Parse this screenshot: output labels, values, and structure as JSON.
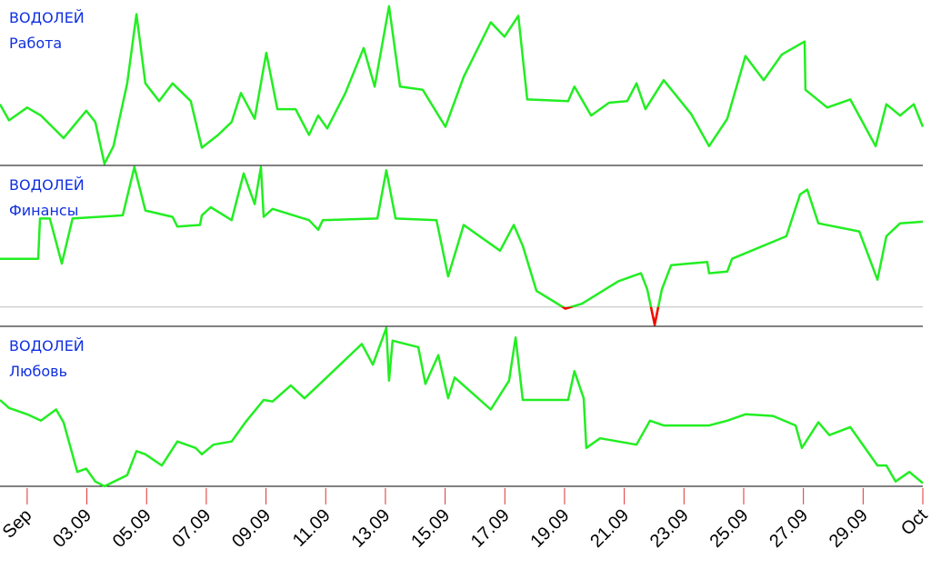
{
  "chart_data": [
    {
      "type": "line",
      "title": "ВОДОЛЕЙ",
      "subtitle": "Работа",
      "xlim": [
        -0.91,
        30
      ],
      "ylim": [
        0,
        100
      ],
      "x": [
        -0.91,
        -0.61,
        0,
        0.46,
        1.22,
        1.98,
        2.28,
        2.59,
        2.89,
        3.35,
        3.66,
        3.96,
        4.42,
        4.87,
        5.48,
        5.85,
        6.4,
        6.85,
        7.16,
        7.62,
        8.01,
        8.38,
        8.99,
        9.44,
        9.75,
        10.05,
        10.66,
        11.27,
        11.64,
        12.12,
        12.49,
        13.25,
        14.01,
        14.62,
        15.53,
        15.99,
        16.45,
        16.75,
        18.12,
        18.33,
        18.89,
        19.49,
        20.1,
        20.41,
        20.71,
        21.32,
        22.24,
        22.84,
        23.45,
        24.06,
        24.67,
        25.28,
        26.04,
        26.07,
        26.8,
        27.57,
        28.42,
        28.78,
        29.24,
        29.7,
        30.0
      ],
      "series": [
        {
          "color": "#22ee22",
          "values": [
            38,
            28,
            36,
            31,
            17,
            34,
            27,
            1,
            12,
            51,
            94,
            51,
            40,
            51,
            40,
            11,
            19,
            27,
            45,
            29,
            70,
            35,
            35,
            19,
            31,
            23,
            45,
            73,
            49,
            99,
            49,
            47,
            24,
            55,
            89,
            80,
            93,
            41,
            40,
            49,
            31,
            39,
            40,
            51,
            35,
            53,
            32,
            12,
            29,
            68,
            53,
            69,
            77,
            47,
            36,
            41,
            12,
            38,
            31,
            38,
            24
          ]
        }
      ]
    },
    {
      "type": "line",
      "title": "ВОДОЛЕЙ",
      "subtitle": "Финансы",
      "xlim": [
        -0.91,
        30
      ],
      "ylim": [
        0,
        100
      ],
      "threshold": 12,
      "threshold_color": "#ff0000",
      "x": [
        -0.91,
        0.37,
        0.43,
        0.76,
        1.16,
        1.52,
        3.2,
        3.59,
        3.96,
        4.87,
        5.03,
        5.79,
        5.85,
        6.15,
        6.85,
        7.25,
        7.62,
        7.83,
        7.92,
        8.22,
        9.44,
        9.75,
        9.9,
        11.73,
        12.03,
        12.34,
        13.71,
        14.1,
        14.62,
        15.84,
        16.3,
        16.6,
        17.06,
        18.03,
        18.58,
        19.8,
        20.56,
        20.77,
        21.02,
        21.26,
        21.57,
        22.78,
        22.84,
        23.45,
        23.61,
        25.43,
        25.89,
        26.13,
        26.5,
        27.87,
        28.48,
        28.78,
        29.24,
        30.0
      ],
      "series": [
        {
          "color": "#22ee22",
          "values": [
            42,
            42,
            67,
            67,
            39,
            67,
            69,
            99,
            72,
            68,
            62,
            63,
            69,
            74,
            66,
            95,
            76,
            99,
            68,
            73,
            66,
            60,
            66,
            67,
            97,
            67,
            66,
            31,
            63,
            47,
            63,
            50,
            22,
            11,
            14,
            28,
            33,
            23,
            1,
            23,
            38,
            40,
            33,
            34,
            42,
            56,
            82,
            85,
            64,
            59,
            29,
            56,
            64,
            65
          ]
        }
      ]
    },
    {
      "type": "line",
      "title": "ВОДОЛЕЙ",
      "subtitle": "Любовь",
      "xlim": [
        -0.91,
        30
      ],
      "ylim": [
        0,
        100
      ],
      "xticks": [
        {
          "value": 0,
          "label": "Sep"
        },
        {
          "value": 2,
          "label": "03.09"
        },
        {
          "value": 4,
          "label": "05.09"
        },
        {
          "value": 6,
          "label": "07.09"
        },
        {
          "value": 8,
          "label": "09.09"
        },
        {
          "value": 10,
          "label": "11.09"
        },
        {
          "value": 12,
          "label": "13.09"
        },
        {
          "value": 14,
          "label": "15.09"
        },
        {
          "value": 16,
          "label": "17.09"
        },
        {
          "value": 18,
          "label": "19.09"
        },
        {
          "value": 20,
          "label": "21.09"
        },
        {
          "value": 22,
          "label": "23.09"
        },
        {
          "value": 24,
          "label": "25.09"
        },
        {
          "value": 26,
          "label": "27.09"
        },
        {
          "value": 28,
          "label": "29.09"
        },
        {
          "value": 30,
          "label": "Oct"
        }
      ],
      "x": [
        -0.91,
        -0.61,
        0,
        0.46,
        0.97,
        1.22,
        1.68,
        1.98,
        2.28,
        2.59,
        3.35,
        3.66,
        3.96,
        4.51,
        5.03,
        5.33,
        5.64,
        5.85,
        6.24,
        6.85,
        7.31,
        7.92,
        8.22,
        8.83,
        9.29,
        9.75,
        11.21,
        11.58,
        12.03,
        12.12,
        12.24,
        13.1,
        13.34,
        13.77,
        14.1,
        14.32,
        15.53,
        16.14,
        16.36,
        16.6,
        18.12,
        18.33,
        18.64,
        18.73,
        19.19,
        20.41,
        20.86,
        21.32,
        22.84,
        23.45,
        24.06,
        24.98,
        25.74,
        25.95,
        26.5,
        26.87,
        27.57,
        28.48,
        28.78,
        29.09,
        29.55,
        30.0
      ],
      "series": [
        {
          "color": "#22ee22",
          "values": [
            54,
            49,
            45,
            41,
            48,
            40,
            9,
            11,
            3,
            0,
            7,
            22,
            20,
            13,
            28,
            26,
            24,
            20,
            26,
            28,
            40,
            54,
            53,
            63,
            55,
            63,
            89,
            76,
            99,
            66,
            91,
            87,
            64,
            82,
            55,
            68,
            48,
            66,
            93,
            54,
            54,
            72,
            55,
            24,
            30,
            26,
            41,
            38,
            38,
            41,
            45,
            44,
            38,
            24,
            40,
            32,
            37,
            13,
            13,
            3,
            9,
            2
          ]
        }
      ]
    }
  ]
}
